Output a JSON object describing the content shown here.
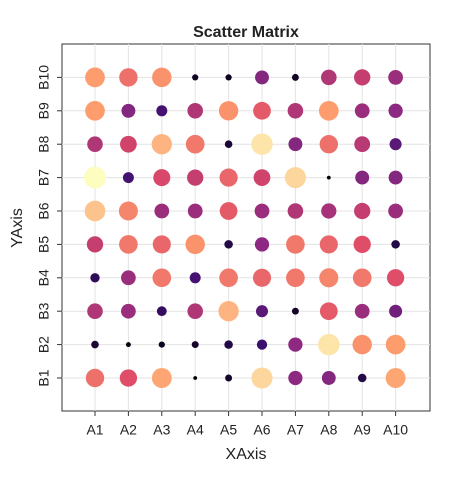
{
  "chart_data": {
    "type": "bubble",
    "title": "Scatter Matrix",
    "xlabel": "XAxis",
    "ylabel": "YAxis",
    "x": [
      "A1",
      "A2",
      "A3",
      "A4",
      "A5",
      "A6",
      "A7",
      "A8",
      "A9",
      "A10"
    ],
    "y": [
      "B1",
      "B2",
      "B3",
      "B4",
      "B5",
      "B6",
      "B7",
      "B8",
      "B9",
      "B10"
    ],
    "values": [
      [
        0.7,
        0.62,
        0.82,
        0.03,
        0.1,
        0.92,
        0.42,
        0.4,
        0.15,
        0.82
      ],
      [
        0.12,
        0.05,
        0.08,
        0.1,
        0.15,
        0.22,
        0.42,
        0.95,
        0.78,
        0.8
      ],
      [
        0.5,
        0.45,
        0.2,
        0.5,
        0.85,
        0.3,
        0.1,
        0.65,
        0.45,
        0.35
      ],
      [
        0.18,
        0.45,
        0.72,
        0.25,
        0.72,
        0.68,
        0.72,
        0.75,
        0.72,
        0.62
      ],
      [
        0.55,
        0.72,
        0.68,
        0.78,
        0.15,
        0.42,
        0.72,
        0.68,
        0.62,
        0.15
      ],
      [
        0.88,
        0.75,
        0.45,
        0.45,
        0.65,
        0.45,
        0.5,
        0.48,
        0.55,
        0.45
      ],
      [
        1.0,
        0.25,
        0.6,
        0.55,
        0.68,
        0.58,
        0.92,
        0.03,
        0.4,
        0.4
      ],
      [
        0.5,
        0.58,
        0.85,
        0.72,
        0.12,
        0.95,
        0.4,
        0.7,
        0.52,
        0.3
      ],
      [
        0.8,
        0.4,
        0.25,
        0.5,
        0.78,
        0.65,
        0.5,
        0.8,
        0.45,
        0.42
      ],
      [
        0.8,
        0.7,
        0.78,
        0.08,
        0.08,
        0.4,
        0.1,
        0.5,
        0.55,
        0.45
      ]
    ],
    "colormap": [
      "#000004",
      "#3b0f70",
      "#8c2981",
      "#de4968",
      "#fe9f6d",
      "#fcfdbf"
    ],
    "grid": true
  }
}
